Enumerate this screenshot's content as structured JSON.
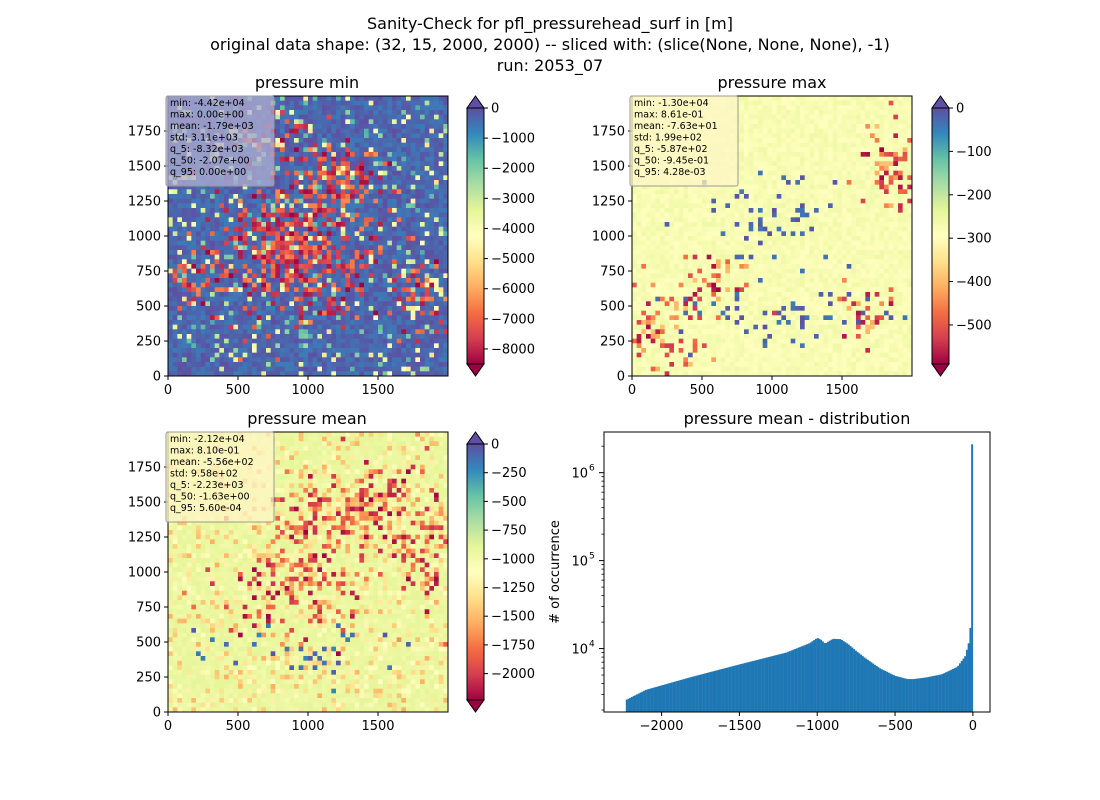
{
  "figure": {
    "title_lines": [
      "Sanity-Check for pfl_pressurehead_surf in [m]",
      "original data shape: (32, 15, 2000, 2000) -- sliced with: (slice(None, None, None), -1)",
      "run: 2053_07"
    ]
  },
  "chart_data": [
    {
      "type": "heatmap",
      "title": "pressure min",
      "xlabel": "",
      "ylabel": "",
      "xlim": [
        0,
        2000
      ],
      "ylim": [
        0,
        2000
      ],
      "xticks": [
        0,
        500,
        1000,
        1500
      ],
      "yticks": [
        0,
        250,
        500,
        750,
        1000,
        1250,
        1500,
        1750
      ],
      "colormap": "Spectral",
      "colorbar": {
        "vmin": -8500,
        "vmax": 0,
        "ticks": [
          0,
          -1000,
          -2000,
          -3000,
          -4000,
          -5000,
          -6000,
          -7000,
          -8000
        ],
        "extend": "both"
      },
      "stats": [
        "min: -4.42e+04",
        "max: 0.00e+00",
        "mean: -1.79e+03",
        "std: 3.11e+03",
        "q_5: -8.32e+03",
        "q_50: -2.07e+00",
        "q_95: 0.00e+00"
      ],
      "stats_box_color": "#b0aed2"
    },
    {
      "type": "heatmap",
      "title": "pressure max",
      "xlabel": "",
      "ylabel": "",
      "xlim": [
        0,
        2000
      ],
      "ylim": [
        0,
        2000
      ],
      "xticks": [
        0,
        500,
        1000,
        1500
      ],
      "yticks": [
        0,
        250,
        500,
        750,
        1000,
        1250,
        1500,
        1750
      ],
      "colormap": "Spectral",
      "colorbar": {
        "vmin": -590,
        "vmax": 0,
        "ticks": [
          0,
          -100,
          -200,
          -300,
          -400,
          -500
        ],
        "extend": "both"
      },
      "stats": [
        "min: -1.30e+04",
        "max: 8.61e-01",
        "mean: -7.63e+01",
        "std: 1.99e+02",
        "q_5: -5.87e+02",
        "q_50: -9.45e-01",
        "q_95: 4.28e-03"
      ],
      "stats_box_color": "#fdf6c6"
    },
    {
      "type": "heatmap",
      "title": "pressure mean",
      "xlabel": "",
      "ylabel": "",
      "xlim": [
        0,
        2000
      ],
      "ylim": [
        0,
        2000
      ],
      "xticks": [
        0,
        500,
        1000,
        1500
      ],
      "yticks": [
        0,
        250,
        500,
        750,
        1000,
        1250,
        1500,
        1750
      ],
      "colormap": "Spectral",
      "colorbar": {
        "vmin": -2230,
        "vmax": 0,
        "ticks": [
          0,
          -250,
          -500,
          -750,
          -1000,
          -1250,
          -1500,
          -1750,
          -2000
        ],
        "extend": "both"
      },
      "stats": [
        "min: -2.12e+04",
        "max: 8.10e-01",
        "mean: -5.56e+02",
        "std: 9.58e+02",
        "q_5: -2.23e+03",
        "q_50: -1.63e+00",
        "q_95: 5.60e-04"
      ],
      "stats_box_color": "#fdf6c6"
    },
    {
      "type": "bar",
      "title": "pressure mean - distribution",
      "xlabel": "",
      "ylabel": "# of occurrence",
      "xlim": [
        -2370,
        110
      ],
      "ylim": [
        1900,
        2900000
      ],
      "yscale": "log",
      "xticks": [
        -2000,
        -1500,
        -1000,
        -500,
        0
      ],
      "yticks": [
        10000,
        100000,
        1000000
      ],
      "ytick_labels": [
        "10",
        "10",
        "10"
      ],
      "ytick_exponents": [
        "4",
        "5",
        "6"
      ],
      "color": "#1f77b4",
      "bin_edges_range": [
        -2230,
        0
      ],
      "bin_count": 200,
      "anchors_x": [
        -2230,
        -2100,
        -1800,
        -1500,
        -1200,
        -1050,
        -1000,
        -980,
        -950,
        -900,
        -850,
        -800,
        -750,
        -700,
        -600,
        -500,
        -420,
        -380,
        -300,
        -200,
        -100,
        -50,
        -25,
        -10,
        0
      ],
      "anchors_count": [
        2600,
        3400,
        4800,
        6600,
        9000,
        11500,
        13200,
        12800,
        11400,
        12900,
        12800,
        11200,
        9400,
        8000,
        6000,
        4900,
        4500,
        4500,
        4700,
        5100,
        6200,
        8200,
        12000,
        23000,
        2100000
      ]
    }
  ]
}
